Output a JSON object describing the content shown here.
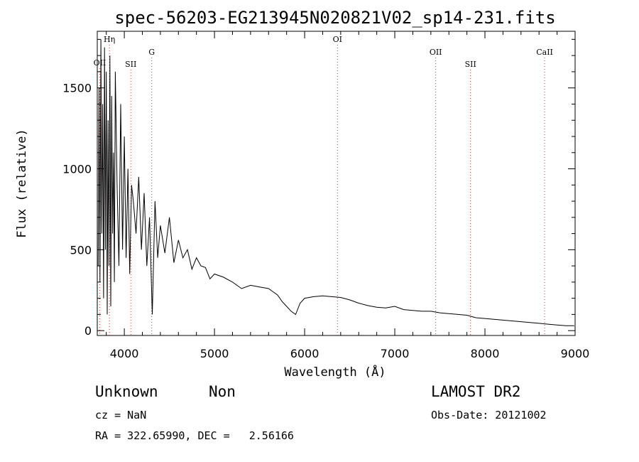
{
  "chart_data": {
    "type": "line",
    "title": "spec-56203-EG213945N020821V02_sp14-231.fits",
    "xlabel": "Wavelength (Å)",
    "ylabel": "Flux (relative)",
    "xlim": [
      3700,
      9000
    ],
    "ylim": [
      -30,
      1850
    ],
    "x_ticks": [
      4000,
      5000,
      6000,
      7000,
      8000,
      9000
    ],
    "y_ticks": [
      0,
      500,
      1000,
      1500
    ],
    "grid": false,
    "line_color": "#000000",
    "marker_color": "#cc3333",
    "spectral_lines": [
      {
        "label": "OII",
        "wavelength": 3727
      },
      {
        "label": "Hη",
        "wavelength": 3835
      },
      {
        "label": "SII",
        "wavelength": 4072
      },
      {
        "label": "G",
        "wavelength": 4304
      },
      {
        "label": "OI",
        "wavelength": 6364
      },
      {
        "label": "OII",
        "wavelength": 7454
      },
      {
        "label": "SII",
        "wavelength": 7840
      },
      {
        "label": "CaII",
        "wavelength": 8662
      }
    ],
    "series": [
      {
        "x": [
          3710,
          3720,
          3730,
          3740,
          3750,
          3760,
          3770,
          3780,
          3790,
          3800,
          3810,
          3820,
          3830,
          3840,
          3850,
          3860,
          3870,
          3880,
          3890,
          3900,
          3920,
          3940,
          3960,
          3980,
          4000,
          4020,
          4040,
          4060,
          4080,
          4100,
          4130,
          4160,
          4190,
          4220,
          4250,
          4280,
          4310,
          4340,
          4370,
          4400,
          4450,
          4500,
          4550,
          4600,
          4650,
          4700,
          4750,
          4800,
          4850,
          4900,
          4950,
          5000,
          5100,
          5200,
          5300,
          5400,
          5500,
          5600,
          5700,
          5750,
          5800,
          5850,
          5900,
          5950,
          6000,
          6100,
          6200,
          6300,
          6400,
          6500,
          6600,
          6700,
          6800,
          6900,
          7000,
          7100,
          7200,
          7300,
          7400,
          7500,
          7600,
          7700,
          7800,
          7900,
          8000,
          8100,
          8200,
          8300,
          8400,
          8500,
          8600,
          8700,
          8800,
          8900,
          8990
        ],
        "y": [
          400,
          1500,
          300,
          1800,
          600,
          1400,
          200,
          1750,
          500,
          1600,
          100,
          1300,
          400,
          1700,
          150,
          1450,
          600,
          1100,
          300,
          1600,
          900,
          400,
          1400,
          500,
          1200,
          450,
          1000,
          350,
          900,
          800,
          600,
          950,
          500,
          850,
          400,
          700,
          100,
          800,
          450,
          650,
          480,
          700,
          420,
          560,
          450,
          500,
          380,
          450,
          400,
          390,
          320,
          350,
          330,
          300,
          260,
          280,
          270,
          260,
          220,
          180,
          150,
          120,
          100,
          170,
          200,
          210,
          215,
          210,
          205,
          190,
          170,
          155,
          145,
          140,
          150,
          130,
          125,
          120,
          120,
          110,
          105,
          100,
          95,
          80,
          75,
          70,
          65,
          60,
          55,
          50,
          45,
          40,
          35,
          30,
          30
        ]
      }
    ]
  },
  "info": {
    "class_label": "Unknown",
    "subclass_label": "Non",
    "survey": "LAMOST DR2",
    "cz": "cz = NaN",
    "obs_date": "Obs-Date: 20121002",
    "coords": "RA = 322.65990, DEC =   2.56166"
  }
}
